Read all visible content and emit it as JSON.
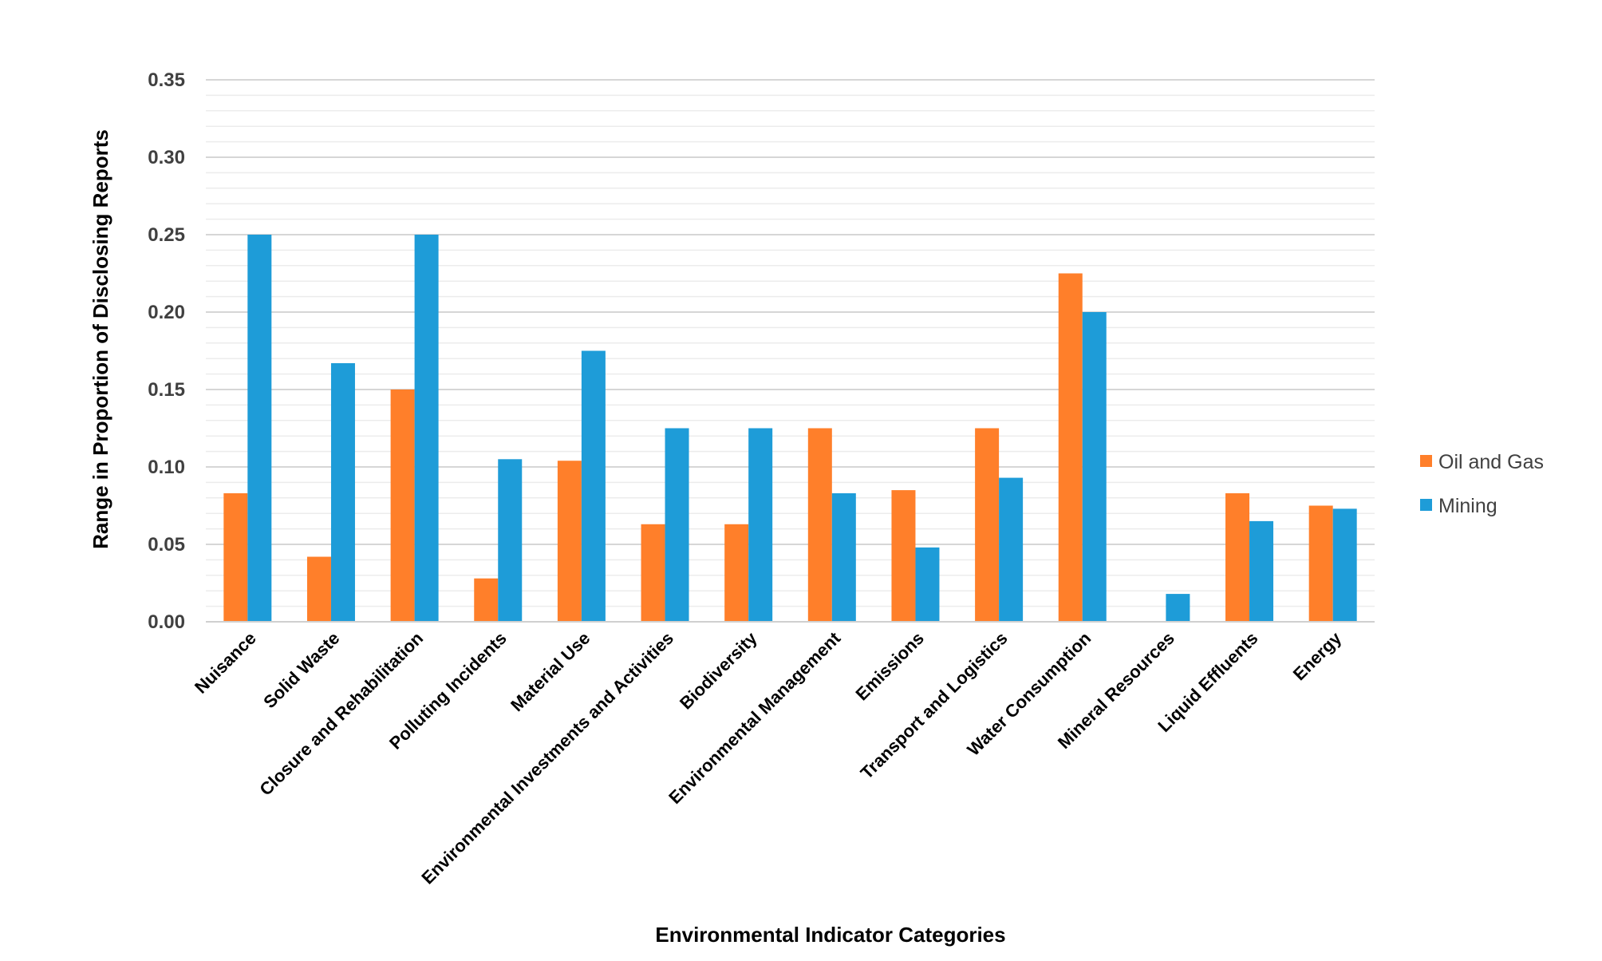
{
  "chart_data": {
    "type": "bar",
    "xlabel": "Environmental Indicator Categories",
    "ylabel": "Range in Proportion of Disclosing Reports",
    "ylim": [
      0,
      0.35
    ],
    "yticks": [
      "0.00",
      "0.05",
      "0.10",
      "0.15",
      "0.20",
      "0.25",
      "0.30",
      "0.35"
    ],
    "grid": true,
    "legend_position": "right",
    "categories": [
      "Nuisance",
      "Solid Waste",
      "Closure and Rehabilitation",
      "Polluting Incidents",
      "Material Use",
      "Environmental Investments and Activities",
      "Biodiversity",
      "Environmental Management",
      "Emissions",
      "Transport and Logistics",
      "Water Consumption",
      "Mineral Resources",
      "Liquid Effluents",
      "Energy"
    ],
    "series": [
      {
        "name": "Oil and Gas",
        "color": "#FF7F2A",
        "values": [
          0.083,
          0.042,
          0.15,
          0.028,
          0.104,
          0.063,
          0.063,
          0.125,
          0.085,
          0.125,
          0.225,
          0.0,
          0.083,
          0.075
        ]
      },
      {
        "name": "Mining",
        "color": "#1E9CD8",
        "values": [
          0.25,
          0.167,
          0.25,
          0.105,
          0.175,
          0.125,
          0.125,
          0.083,
          0.048,
          0.093,
          0.2,
          0.018,
          0.065,
          0.073
        ]
      }
    ]
  }
}
